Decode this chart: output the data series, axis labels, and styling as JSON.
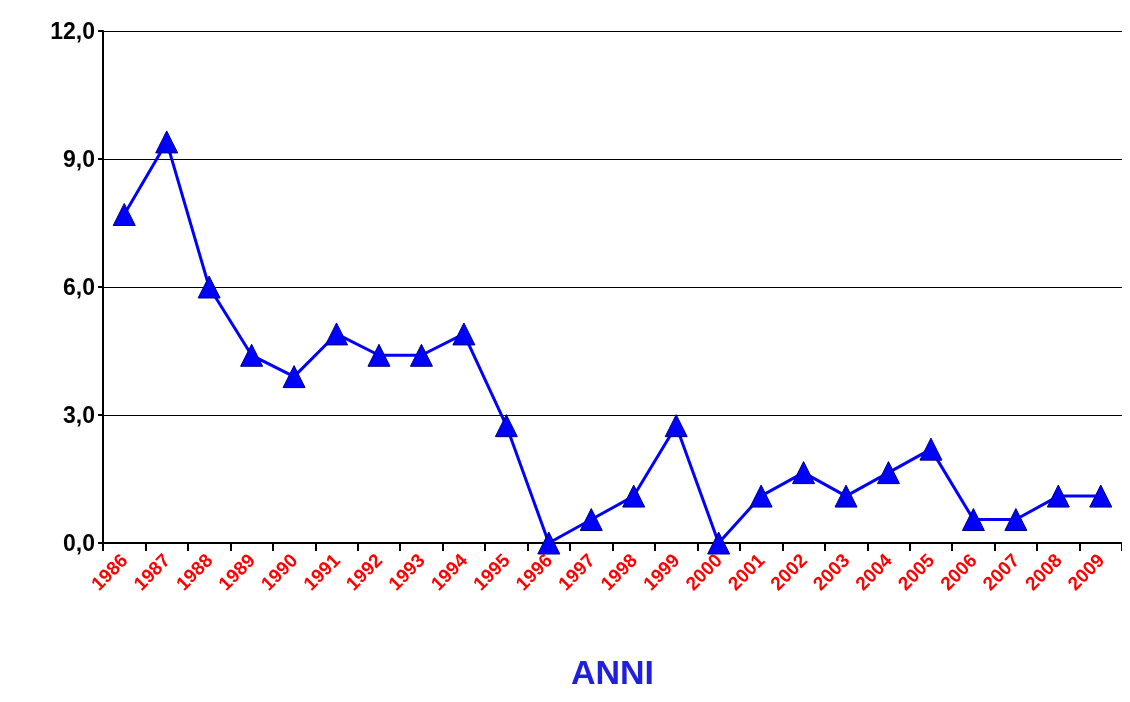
{
  "chart_data": {
    "type": "line",
    "xlabel": "ANNI",
    "categories": [
      "1986",
      "1987",
      "1988",
      "1989",
      "1990",
      "1991",
      "1992",
      "1993",
      "1994",
      "1995",
      "1996",
      "1997",
      "1998",
      "1999",
      "2000",
      "2001",
      "2002",
      "2003",
      "2004",
      "2005",
      "2006",
      "2007",
      "2008",
      "2009"
    ],
    "series": [
      {
        "color": "#0000ff",
        "values": [
          7.7,
          9.4,
          6.0,
          4.4,
          3.9,
          4.9,
          4.4,
          4.4,
          4.9,
          2.75,
          0,
          0.55,
          1.1,
          2.75,
          0,
          1.1,
          1.65,
          1.1,
          1.65,
          2.2,
          0.55,
          0.55,
          1.1,
          1.1
        ]
      }
    ],
    "ylim": [
      0,
      12
    ],
    "yticks": [
      {
        "value": 0,
        "label": "0,0"
      },
      {
        "value": 3,
        "label": "3,0"
      },
      {
        "value": 6,
        "label": "6,0"
      },
      {
        "value": 9,
        "label": "9,0"
      },
      {
        "value": 12,
        "label": "12,0"
      }
    ],
    "grid": "y",
    "marker": "triangle",
    "line_style": "solid"
  }
}
